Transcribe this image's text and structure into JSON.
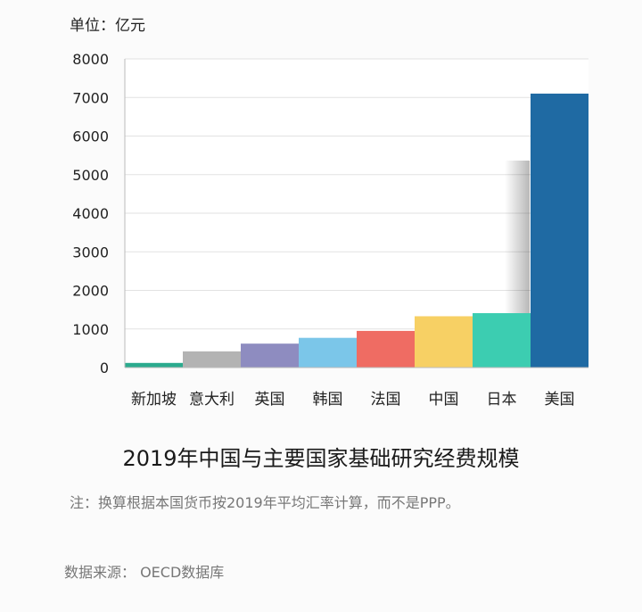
{
  "unit_label": "单位：亿元",
  "title": "2019年中国与主要国家基础研究经费规模",
  "note": "注：换算根据本国货币按2019年平均汇率计算，而不是PPP。",
  "source": "数据来源： OECD数据库",
  "chart_data": {
    "type": "bar",
    "title": "2019年中国与主要国家基础研究经费规模",
    "ylabel": "单位：亿元",
    "xlabel": "",
    "ylim": [
      0,
      8000
    ],
    "yticks": [
      0,
      1000,
      2000,
      3000,
      4000,
      5000,
      6000,
      7000,
      8000
    ],
    "grid": true,
    "categories": [
      "新加坡",
      "意大利",
      "英国",
      "韩国",
      "法国",
      "中国",
      "日本",
      "美国"
    ],
    "values": [
      120,
      420,
      620,
      770,
      950,
      1330,
      1410,
      7100
    ],
    "colors": [
      "#2bab8e",
      "#b3b3b3",
      "#8e8cc0",
      "#7bc6e9",
      "#ef6c63",
      "#f7d064",
      "#3ccdb1",
      "#1f6aa3"
    ]
  }
}
